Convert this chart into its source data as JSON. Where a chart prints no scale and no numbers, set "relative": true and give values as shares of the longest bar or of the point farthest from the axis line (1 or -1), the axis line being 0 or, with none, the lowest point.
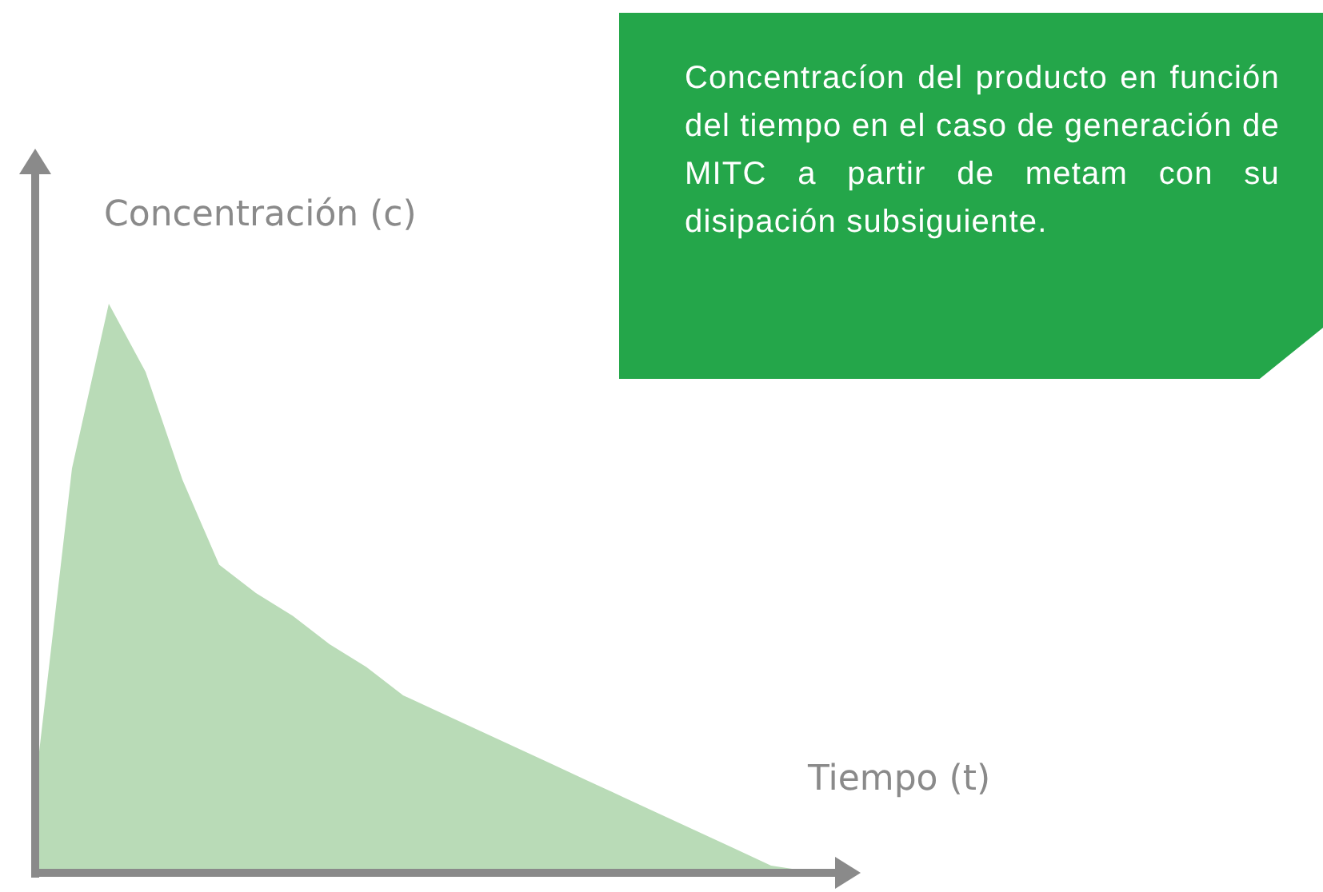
{
  "chart_data": {
    "type": "area",
    "title": "Concentracíon del producto en función del tiempo en el caso de generación de MITC a partir de metam con su disipación subsiguiente.",
    "xlabel": "Tiempo (t)",
    "ylabel": "Concentración (c)",
    "relative": true,
    "categories": [
      null,
      null,
      null,
      null,
      null,
      null,
      null,
      null,
      null,
      null,
      null,
      null,
      null,
      null,
      null,
      null,
      null,
      null,
      null,
      null,
      null,
      null
    ],
    "series": [
      {
        "color": "#b9dbb7",
        "values": [
          0.15,
          0.71,
          1,
          0.88,
          0.69,
          0.54,
          0.49,
          0.45,
          0.4,
          0.36,
          0.31,
          0.28,
          0.25,
          0.22,
          0.19,
          0.16,
          0.13,
          0.1,
          0.07,
          0.04,
          0.01,
          0
        ]
      }
    ],
    "legend": false,
    "marker": "none"
  }
}
